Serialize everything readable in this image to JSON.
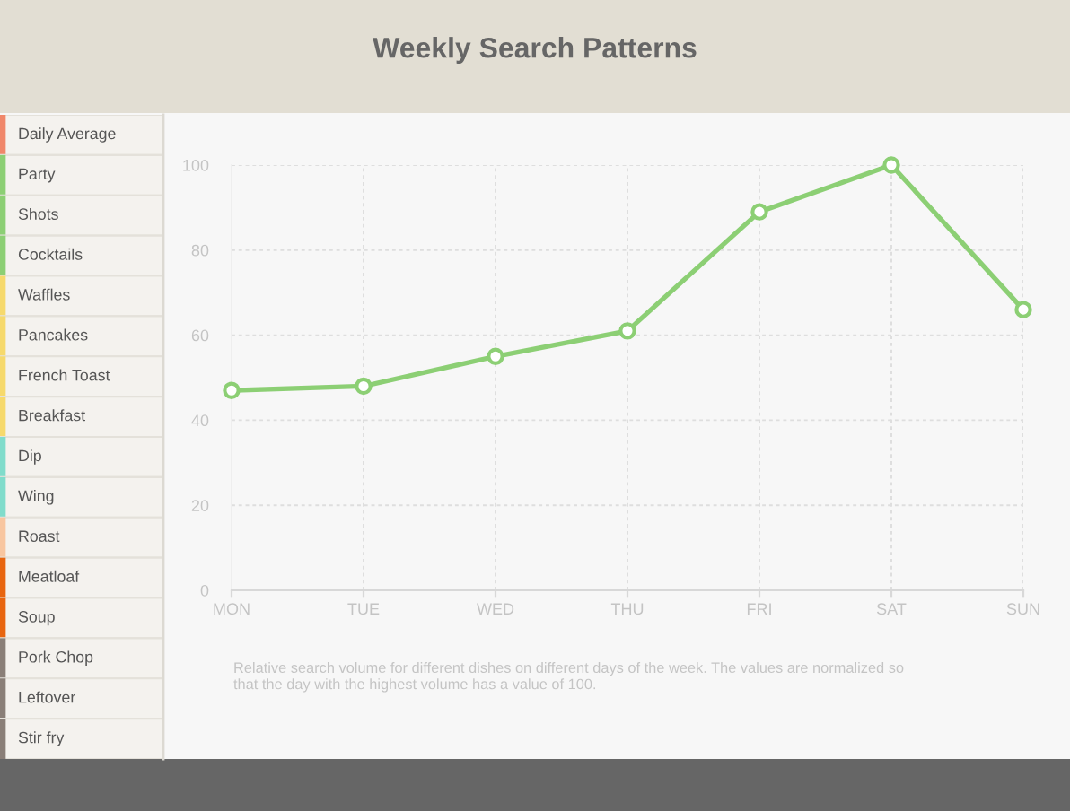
{
  "chart_data": [
    {
      "type": "other",
      "annotations": [
        "Daily Average",
        "Party",
        "Shots",
        "Cocktails",
        "Waffles",
        "Pancakes",
        "French Toast",
        "Breakfast",
        "Dip",
        "Wing",
        "Roast",
        "Meatloaf",
        "Soup",
        "Pork Chop",
        "Leftover",
        "Stir fry"
      ],
      "colors": [
        "#f0876a",
        "#8ccf74",
        "#8ccf74",
        "#8ccf74",
        "#f6d96c",
        "#f6d96c",
        "#f6d96c",
        "#f6d96c",
        "#80dccb",
        "#80dccb",
        "#f8c6a0",
        "#e8650f",
        "#e8650f",
        "#8a7f78",
        "#8a7f78",
        "#8a7f78"
      ]
    },
    {
      "type": "line",
      "title": "Weekly Search Patterns",
      "categories": [
        "MON",
        "TUE",
        "WED",
        "THU",
        "FRI",
        "SAT",
        "SUN"
      ],
      "series": [
        {
          "color": "#8ccf74",
          "values": [
            47,
            48,
            55,
            61,
            89,
            100,
            66
          ]
        }
      ],
      "ylim": [
        0,
        100
      ],
      "yticks": [
        0,
        20,
        40,
        60,
        80,
        100
      ],
      "grid": true,
      "marker": "circle",
      "line_style": "solid",
      "annotations": [
        "Relative search volume for different dishes on different days of the week. The values are normalized so\nthat the day with the highest volume has a value of 100."
      ]
    }
  ]
}
